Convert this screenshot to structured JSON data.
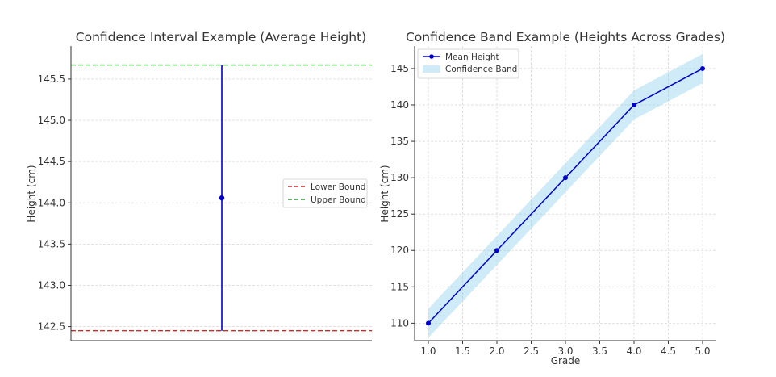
{
  "chart_data": [
    {
      "type": "line",
      "title": "Confidence Interval Example (Average Height)",
      "xlabel": "",
      "ylabel": "Height (cm)",
      "ylim": [
        142.33,
        145.9
      ],
      "yticks": [
        142.5,
        143.0,
        143.5,
        144.0,
        144.5,
        145.0,
        145.5
      ],
      "ytick_labels": [
        "142.5",
        "143.0",
        "143.5",
        "144.0",
        "144.5",
        "145.0",
        "145.5"
      ],
      "grid": true,
      "mean": 144.06,
      "interval": [
        142.45,
        145.67
      ],
      "series": [
        {
          "name": "Lower Bound",
          "value": 142.45,
          "style": "dashed",
          "color": "#d62728"
        },
        {
          "name": "Upper Bound",
          "value": 145.67,
          "style": "dashed",
          "color": "#2ca02c"
        }
      ],
      "point_color": "#0000cc",
      "legend_position": "center-right"
    },
    {
      "type": "line",
      "title": "Confidence Band Example (Heights Across Grades)",
      "xlabel": "Grade",
      "ylabel": "Height (cm)",
      "xlim": [
        0.8,
        5.2
      ],
      "ylim": [
        107.6,
        148.1
      ],
      "xticks": [
        1.0,
        1.5,
        2.0,
        2.5,
        3.0,
        3.5,
        4.0,
        4.5,
        5.0
      ],
      "xtick_labels": [
        "1.0",
        "1.5",
        "2.0",
        "2.5",
        "3.0",
        "3.5",
        "4.0",
        "4.5",
        "5.0"
      ],
      "yticks": [
        110,
        115,
        120,
        125,
        130,
        135,
        140,
        145
      ],
      "ytick_labels": [
        "110",
        "115",
        "120",
        "125",
        "130",
        "135",
        "140",
        "145"
      ],
      "grid": true,
      "x": [
        1,
        2,
        3,
        4,
        5
      ],
      "series": [
        {
          "name": "Mean Height",
          "values": [
            110,
            120,
            130,
            140,
            145
          ],
          "color": "#0000cc"
        },
        {
          "name": "Confidence Band",
          "lower": [
            108,
            118,
            128,
            138,
            143
          ],
          "upper": [
            112,
            122,
            132,
            142,
            147
          ],
          "color": "#87ceeb"
        }
      ],
      "legend_position": "top-left"
    }
  ]
}
